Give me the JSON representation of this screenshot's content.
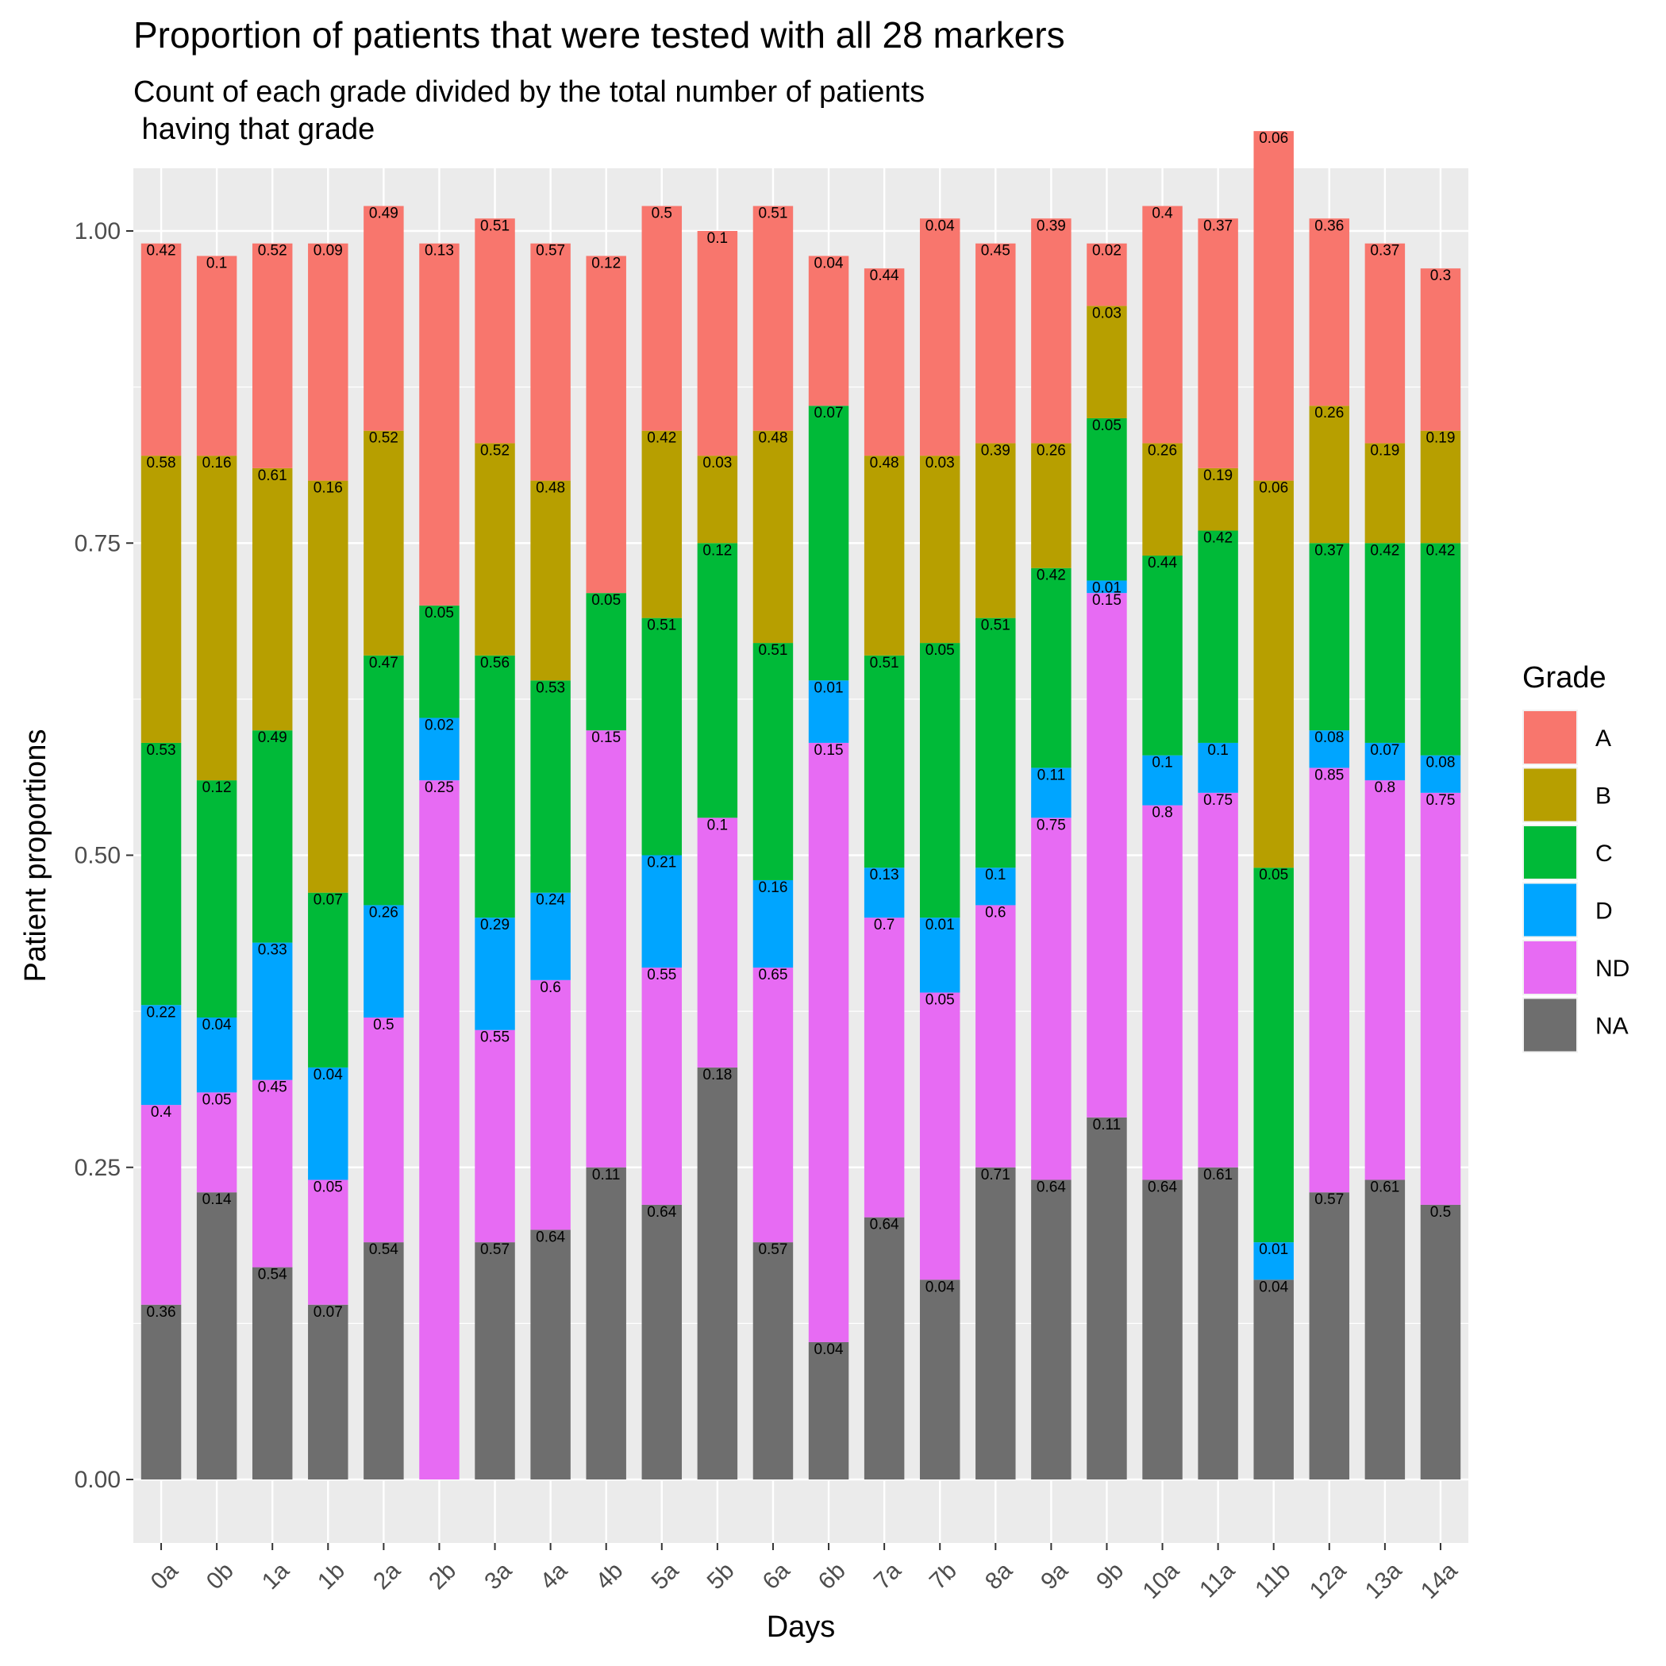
{
  "chart_data": {
    "type": "bar",
    "stacked": true,
    "title": "Proportion of patients that were tested with all 28 markers",
    "subtitle_lines": [
      "Count of each grade divided by the total number of patients",
      " having that grade"
    ],
    "xlabel": "Days",
    "ylabel": "Patient proportions",
    "ylim": [
      0,
      1
    ],
    "yticks": [
      "0.00",
      "0.25",
      "0.50",
      "0.75",
      "1.00"
    ],
    "grid": true,
    "legend_position": "right",
    "categories": [
      "0a",
      "0b",
      "1a",
      "1b",
      "2a",
      "2b",
      "3a",
      "4a",
      "4b",
      "5a",
      "5b",
      "6a",
      "6b",
      "7a",
      "7b",
      "8a",
      "9a",
      "9b",
      "10a",
      "11a",
      "11b",
      "12a",
      "13a",
      "14a"
    ],
    "legend": {
      "title": "Grade",
      "entries": [
        {
          "name": "A",
          "color": "#F8766D"
        },
        {
          "name": "B",
          "color": "#B79F00"
        },
        {
          "name": "C",
          "color": "#00BA38"
        },
        {
          "name": "D",
          "color": "#00A5FF"
        },
        {
          "name": "ND",
          "color": "#E76BF3"
        },
        {
          "name": "NA",
          "color": "#6E6E6E"
        }
      ]
    },
    "stack_order_bottom_to_top": [
      "NA",
      "ND",
      "D",
      "C",
      "B",
      "A"
    ],
    "series": [
      {
        "name": "A",
        "values": [
          0.17,
          0.16,
          0.18,
          0.19,
          0.18,
          0.29,
          0.18,
          0.19,
          0.27,
          0.18,
          0.18,
          0.18,
          0.12,
          0.15,
          0.19,
          0.16,
          0.18,
          0.05,
          0.19,
          0.2,
          0.28,
          0.15,
          0.16,
          0.13
        ],
        "labels": [
          "0.42",
          "0.1",
          "0.52",
          "0.09",
          "0.49",
          "0.13",
          "0.51",
          "0.57",
          "0.12",
          "0.5",
          "0.1",
          "0.51",
          "0.04",
          "0.44",
          "0.04",
          "0.45",
          "0.39",
          "0.02",
          "0.4",
          "0.37",
          "0.06",
          "0.36",
          "0.37",
          "0.3"
        ]
      },
      {
        "name": "B",
        "values": [
          0.23,
          0.26,
          0.21,
          0.33,
          0.18,
          0.0,
          0.17,
          0.16,
          0.0,
          0.15,
          0.07,
          0.17,
          0.0,
          0.16,
          0.15,
          0.14,
          0.1,
          0.09,
          0.09,
          0.05,
          0.31,
          0.11,
          0.08,
          0.09
        ],
        "labels": [
          "0.58",
          "0.16",
          "0.61",
          "0.16",
          "0.52",
          "",
          "0.52",
          "0.48",
          "",
          "0.42",
          "0.03",
          "0.48",
          "",
          "0.48",
          "0.03",
          "0.39",
          "0.26",
          "0.03",
          "0.26",
          "0.19",
          "0.06",
          "0.26",
          "0.19",
          "0.19"
        ]
      },
      {
        "name": "C",
        "values": [
          0.21,
          0.19,
          0.17,
          0.14,
          0.2,
          0.09,
          0.21,
          0.17,
          0.11,
          0.19,
          0.22,
          0.19,
          0.22,
          0.17,
          0.22,
          0.2,
          0.16,
          0.13,
          0.16,
          0.17,
          0.3,
          0.15,
          0.16,
          0.17
        ],
        "labels": [
          "0.53",
          "0.12",
          "0.49",
          "0.07",
          "0.47",
          "0.05",
          "0.56",
          "0.53",
          "0.05",
          "0.51",
          "0.12",
          "0.51",
          "0.07",
          "0.51",
          "0.05",
          "0.51",
          "0.42",
          "0.05",
          "0.44",
          "0.42",
          "0.05",
          "0.37",
          "0.42",
          "0.42"
        ]
      },
      {
        "name": "D",
        "values": [
          0.08,
          0.06,
          0.11,
          0.09,
          0.09,
          0.05,
          0.09,
          0.07,
          0.0,
          0.09,
          0.0,
          0.07,
          0.05,
          0.04,
          0.06,
          0.03,
          0.04,
          0.01,
          0.04,
          0.04,
          0.03,
          0.03,
          0.03,
          0.03
        ],
        "labels": [
          "0.22",
          "0.04",
          "0.33",
          "0.04",
          "0.26",
          "0.02",
          "0.29",
          "0.24",
          "",
          "0.21",
          "",
          "0.16",
          "0.01",
          "0.13",
          "0.01",
          "0.1",
          "0.11",
          "0.01",
          "0.1",
          "0.1",
          "0.01",
          "0.08",
          "0.07",
          "0.08"
        ]
      },
      {
        "name": "ND",
        "values": [
          0.16,
          0.08,
          0.15,
          0.1,
          0.18,
          0.56,
          0.17,
          0.2,
          0.35,
          0.19,
          0.2,
          0.22,
          0.48,
          0.24,
          0.23,
          0.21,
          0.29,
          0.42,
          0.3,
          0.3,
          0.0,
          0.34,
          0.32,
          0.33
        ],
        "labels": [
          "0.4",
          "0.05",
          "0.45",
          "0.05",
          "0.5",
          "0.25",
          "0.55",
          "0.6",
          "0.15",
          "0.55",
          "0.1",
          "0.65",
          "0.15",
          "0.7",
          "0.05",
          "0.6",
          "0.75",
          "0.15",
          "0.8",
          "0.75",
          "",
          "0.85",
          "0.8",
          "0.75"
        ]
      },
      {
        "name": "NA",
        "values": [
          0.14,
          0.23,
          0.17,
          0.14,
          0.19,
          0.0,
          0.19,
          0.2,
          0.25,
          0.22,
          0.33,
          0.19,
          0.11,
          0.21,
          0.16,
          0.25,
          0.24,
          0.29,
          0.24,
          0.25,
          0.16,
          0.23,
          0.24,
          0.22
        ],
        "labels": [
          "0.36",
          "0.14",
          "0.54",
          "0.07",
          "0.54",
          "",
          "0.57",
          "0.64",
          "0.11",
          "0.64",
          "0.18",
          "0.57",
          "0.04",
          "0.64",
          "0.04",
          "0.71",
          "0.64",
          "0.11",
          "0.64",
          "0.61",
          "0.04",
          "0.57",
          "0.61",
          "0.5"
        ]
      }
    ]
  }
}
